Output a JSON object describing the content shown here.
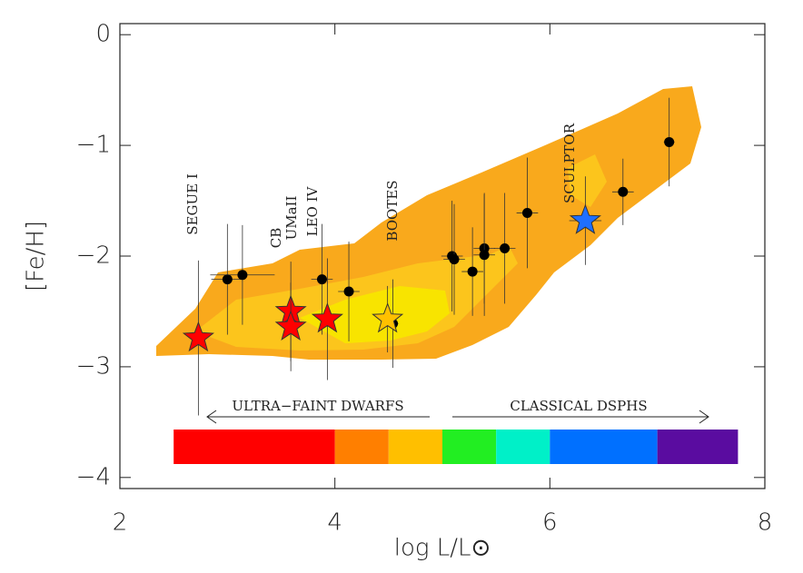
{
  "chart_data": {
    "type": "scatter",
    "xlabel": "log L/L⊙",
    "ylabel": "[Fe/H]",
    "xlim": [
      2,
      8
    ],
    "ylim": [
      -4.1,
      0.1
    ],
    "xticks": [
      2,
      4,
      6,
      8
    ],
    "yticks": [
      {
        "value": -4,
        "label": "−4"
      },
      {
        "value": -3,
        "label": "−3"
      },
      {
        "value": -2,
        "label": "−2"
      },
      {
        "value": -1,
        "label": "−1"
      },
      0
    ],
    "series": [
      {
        "color": "#000000",
        "marker": "circle",
        "x": [
          3.0,
          3.14,
          3.88,
          4.13,
          4.54,
          5.09,
          5.11,
          5.28,
          5.39,
          5.39,
          5.58,
          5.79,
          6.68,
          7.11
        ],
        "values": [
          -2.21,
          -2.17,
          -2.21,
          -2.32,
          -2.61,
          -2.0,
          -2.03,
          -2.14,
          -1.93,
          -1.99,
          -1.93,
          -1.61,
          -1.42,
          -0.97
        ],
        "yerr": [
          0.5,
          0.45,
          0.5,
          0.45,
          0.4,
          0.5,
          0.5,
          0.4,
          0.5,
          0.55,
          0.5,
          0.5,
          0.3,
          0.4
        ],
        "xerr": [
          0.15,
          0.3,
          0.1,
          0.1,
          0.05,
          0.1,
          0.1,
          0.1,
          0.1,
          0.1,
          0.1,
          0.1,
          0.1,
          0.05
        ]
      },
      {
        "color": "#ff0000",
        "marker": "star",
        "x": [
          2.73,
          3.59,
          3.59,
          3.93
        ],
        "values": [
          -2.74,
          -2.5,
          -2.64,
          -2.57
        ],
        "yerr": [
          0.7,
          0.45,
          0.4,
          0.55
        ],
        "xerr": [
          0.05,
          0.05,
          0.05,
          0.05
        ]
      },
      {
        "color": "#ffc000",
        "marker": "star",
        "x": [
          4.49
        ],
        "values": [
          -2.57
        ],
        "yerr": [
          0.3
        ],
        "xerr": [
          0.05
        ]
      },
      {
        "color": "#1f6fff",
        "marker": "star",
        "x": [
          6.33
        ],
        "values": [
          -1.68
        ],
        "yerr": [
          0.4
        ],
        "xerr": [
          0.15
        ]
      }
    ],
    "colorbar": [
      {
        "from": 2.5,
        "to": 4,
        "color": "#ff0000"
      },
      {
        "from": 4,
        "to": 4.5,
        "color": "#ff7f00"
      },
      {
        "from": 4.5,
        "to": 5,
        "color": "#ffbf00"
      },
      {
        "from": 5,
        "to": 5.5,
        "color": "#22ee22"
      },
      {
        "from": 5.5,
        "to": 6,
        "color": "#00f0c8"
      },
      {
        "from": 6,
        "to": 7,
        "color": "#0070ff"
      },
      {
        "from": 7,
        "to": 7.75,
        "color": "#5a0ca0"
      }
    ],
    "annotations": [
      "SEGUE I",
      "CB",
      "UMaII",
      "LEO IV",
      "BOOTES",
      "SCULPTOR",
      "ULTRA−FAINT DWARFS",
      "CLASSICAL DSPHS"
    ]
  }
}
